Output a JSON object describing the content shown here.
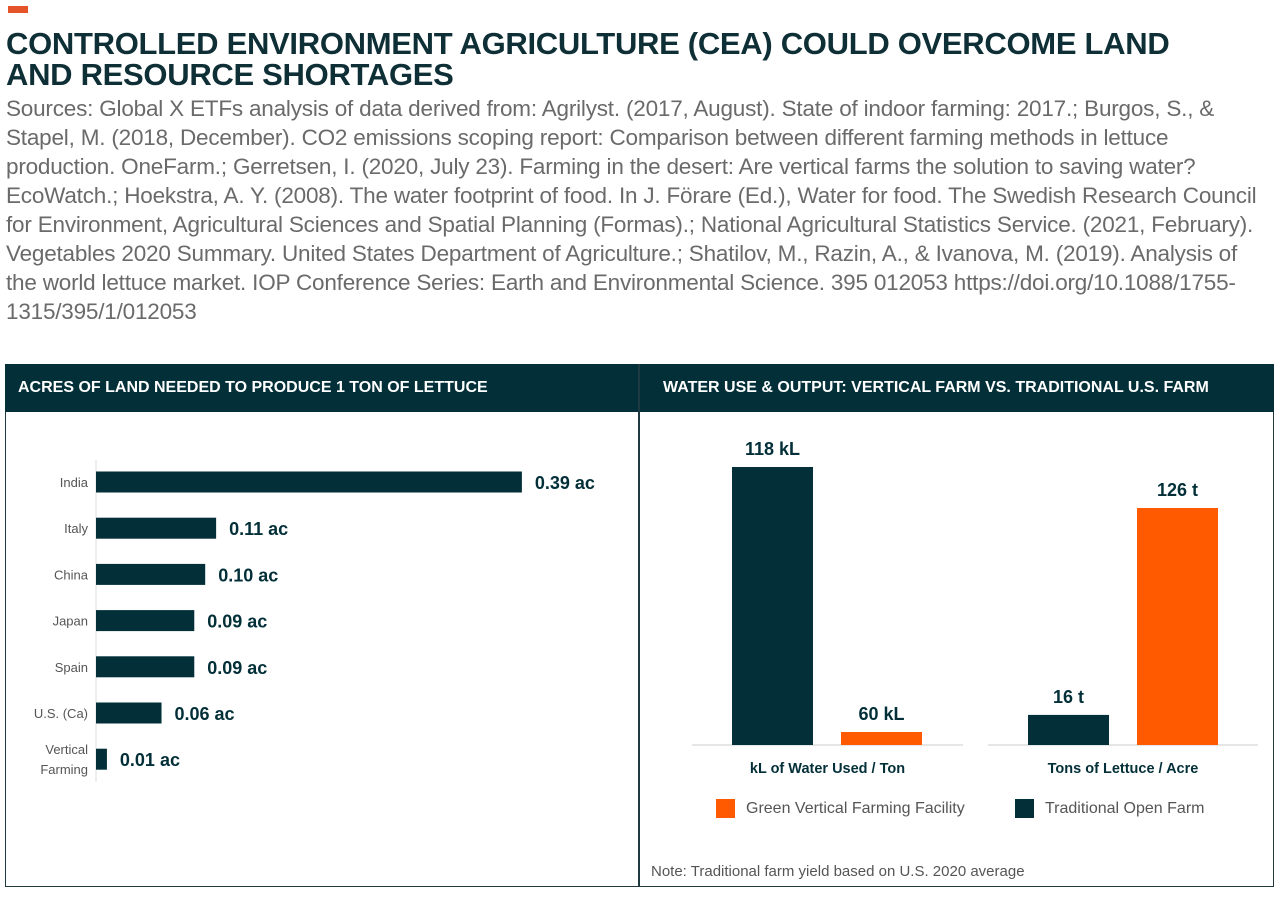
{
  "title": "CONTROLLED ENVIRONMENT AGRICULTURE (CEA) COULD OVERCOME LAND AND RESOURCE SHORTAGES",
  "sources": "Sources: Global X ETFs analysis of data derived from: Agrilyst. (2017, August). State of indoor farming: 2017.; Burgos, S., & Stapel, M. (2018, December). CO2 emissions scoping report: Comparison between different farming methods in lettuce production. OneFarm.; Gerretsen, I. (2020, July 23). Farming in the desert: Are vertical farms the solution to saving water? EcoWatch.; Hoekstra, A. Y. (2008). The water footprint of food. In J. Förare (Ed.), Water for food. The Swedish Research Council for Environment, Agricultural Sciences and Spatial Planning (Formas).; National Agricultural Statistics Service. (2021, February). Vegetables 2020 Summary. United States Department of Agriculture.; Shatilov, M., Razin, A., & Ivanova, M. (2019). Analysis of the world lettuce market. IOP Conference Series: Earth and Environmental Science. 395 012053 https://doi.org/10.1088/1755-1315/395/1/012053",
  "colors": {
    "dark": "#022f38",
    "orange": "#ff5a00",
    "accent": "#e5532a"
  },
  "chart_data": [
    {
      "type": "bar",
      "orientation": "horizontal",
      "title": "ACRES OF LAND NEEDED TO PRODUCE 1 TON OF LETTUCE",
      "categories": [
        "India",
        "Italy",
        "China",
        "Japan",
        "Spain",
        "U.S. (Ca)",
        "Vertical Farming"
      ],
      "values": [
        0.39,
        0.11,
        0.1,
        0.09,
        0.09,
        0.06,
        0.01
      ],
      "labels": [
        "0.39 ac",
        "0.11 ac",
        "0.10 ac",
        "0.09 ac",
        "0.09 ac",
        "0.06 ac",
        "0.01 ac"
      ],
      "color": "#022f38"
    },
    {
      "type": "bar",
      "title": "WATER USE & OUTPUT: VERTICAL FARM VS. TRADITIONAL U.S. FARM",
      "categories": [
        "kL of Water Used / Ton",
        "Tons of Lettuce / Acre"
      ],
      "series": [
        {
          "name": "Traditional Open Farm",
          "color": "#022f38",
          "values": [
            118,
            16
          ],
          "labels": [
            "118 kL",
            "16 t"
          ]
        },
        {
          "name": "Green Vertical Farming Facility",
          "color": "#ff5a00",
          "values": [
            60,
            126
          ],
          "labels": [
            "60 kL",
            "126 t"
          ]
        }
      ],
      "legend": [
        "Green Vertical Farming Facility",
        "Traditional Open Farm"
      ],
      "note": "Note: Traditional farm yield based on U.S. 2020 average"
    }
  ]
}
